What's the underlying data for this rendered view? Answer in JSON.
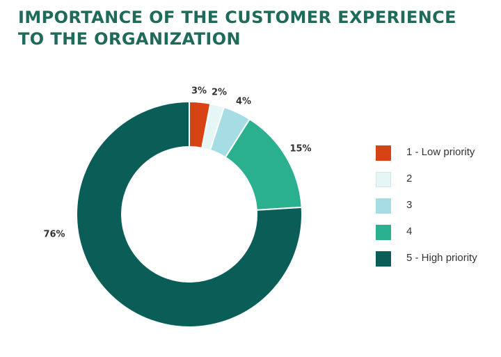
{
  "title_lines": [
    "IMPORTANCE OF THE CUSTOMER EXPERIENCE",
    "TO THE ORGANIZATION"
  ],
  "chart_data": {
    "type": "pie",
    "donut": true,
    "legend_position": "right",
    "slices": [
      {
        "label": "1 - Low priority",
        "value": 3,
        "value_label": "3%",
        "color": "#d84315"
      },
      {
        "label": "2",
        "value": 2,
        "value_label": "2%",
        "color": "#e6f5f5"
      },
      {
        "label": "3",
        "value": 4,
        "value_label": "4%",
        "color": "#a6dce4"
      },
      {
        "label": "4",
        "value": 15,
        "value_label": "15%",
        "color": "#2bb08f"
      },
      {
        "label": "5 - High priority",
        "value": 76,
        "value_label": "76%",
        "color": "#0b5e58"
      }
    ]
  }
}
